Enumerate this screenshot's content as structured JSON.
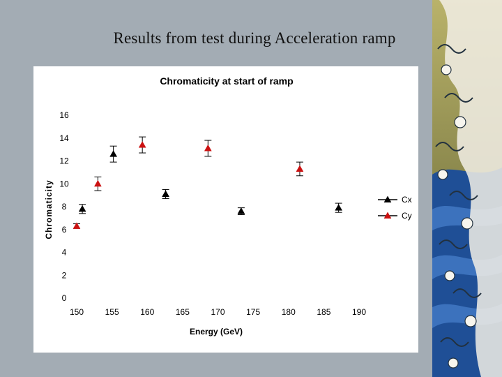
{
  "slide": {
    "title": "Results from test during Acceleration ramp"
  },
  "colors": {
    "background": "#a3acb4",
    "cx": "#000000",
    "cy": "#cc1111",
    "error_bar": "#000000"
  },
  "chart_data": {
    "type": "scatter",
    "title": "Chromaticity at start of ramp",
    "xlabel": "Energy (GeV)",
    "ylabel": "Chromaticity",
    "xlim": [
      150,
      190
    ],
    "ylim": [
      0,
      16
    ],
    "xticks": [
      150,
      155,
      160,
      165,
      170,
      175,
      180,
      185,
      190
    ],
    "yticks": [
      0,
      2,
      4,
      6,
      8,
      10,
      12,
      14,
      16
    ],
    "grid": false,
    "legend_position": "right",
    "series": [
      {
        "name": "Cx",
        "marker": "triangle",
        "color": "#000000",
        "x": [
          150.8,
          155.2,
          162.6,
          173.3,
          187.1
        ],
        "y": [
          7.8,
          12.6,
          9.1,
          7.6,
          7.9
        ],
        "err": [
          0.4,
          0.7,
          0.4,
          0.3,
          0.4
        ]
      },
      {
        "name": "Cy",
        "marker": "triangle",
        "color": "#cc1111",
        "x": [
          150.0,
          153.0,
          159.3,
          168.6,
          181.6
        ],
        "y": [
          6.3,
          10.0,
          13.4,
          13.1,
          11.3
        ],
        "err": [
          0.2,
          0.6,
          0.7,
          0.7,
          0.6
        ]
      }
    ]
  }
}
